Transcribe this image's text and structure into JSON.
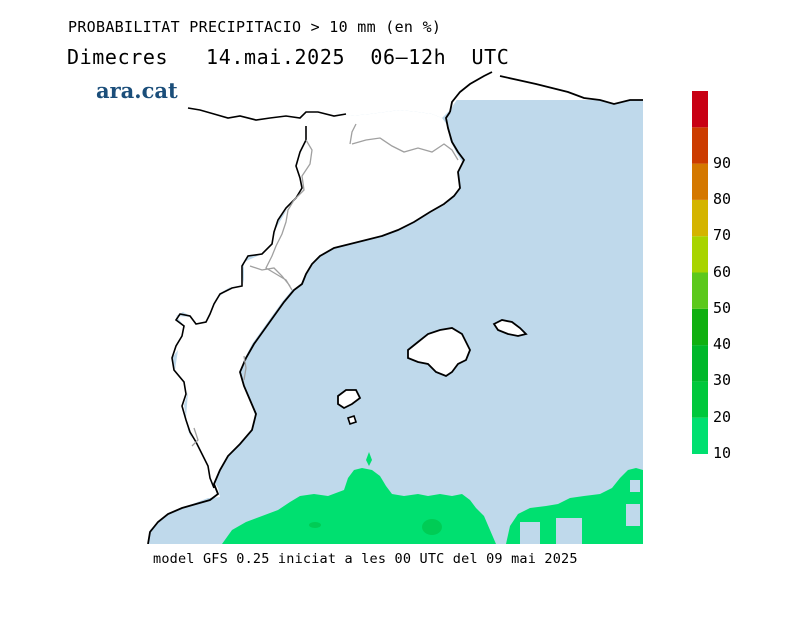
{
  "header": {
    "title": "PROBABILITAT PRECIPITACIO > 10 mm (en %)",
    "subtitle": "Dimecres   14.mai.2025  06–12h  UTC"
  },
  "logo": {
    "text": "ara.cat",
    "color": "#1b4e7a"
  },
  "footer": {
    "text": "model GFS 0.25 iniciat a les 00 UTC del 09 mai 2025"
  },
  "colors": {
    "sea": "#bfd9eb",
    "land": "#ffffff",
    "coast": "#000000",
    "border": "#a0a0a0",
    "precip_10_20": "#00e070"
  },
  "legend": {
    "levels": [
      {
        "label": "10",
        "color": "#00e070"
      },
      {
        "label": "20",
        "color": "#00c83c"
      },
      {
        "label": "30",
        "color": "#00b82a"
      },
      {
        "label": "40",
        "color": "#10b010"
      },
      {
        "label": "50",
        "color": "#5cc81c"
      },
      {
        "label": "60",
        "color": "#a8d400"
      },
      {
        "label": "70",
        "color": "#d4b400"
      },
      {
        "label": "80",
        "color": "#d47800"
      },
      {
        "label": "90",
        "color": "#cc3c00"
      },
      {
        "label": "",
        "color": "#c80014"
      }
    ]
  }
}
